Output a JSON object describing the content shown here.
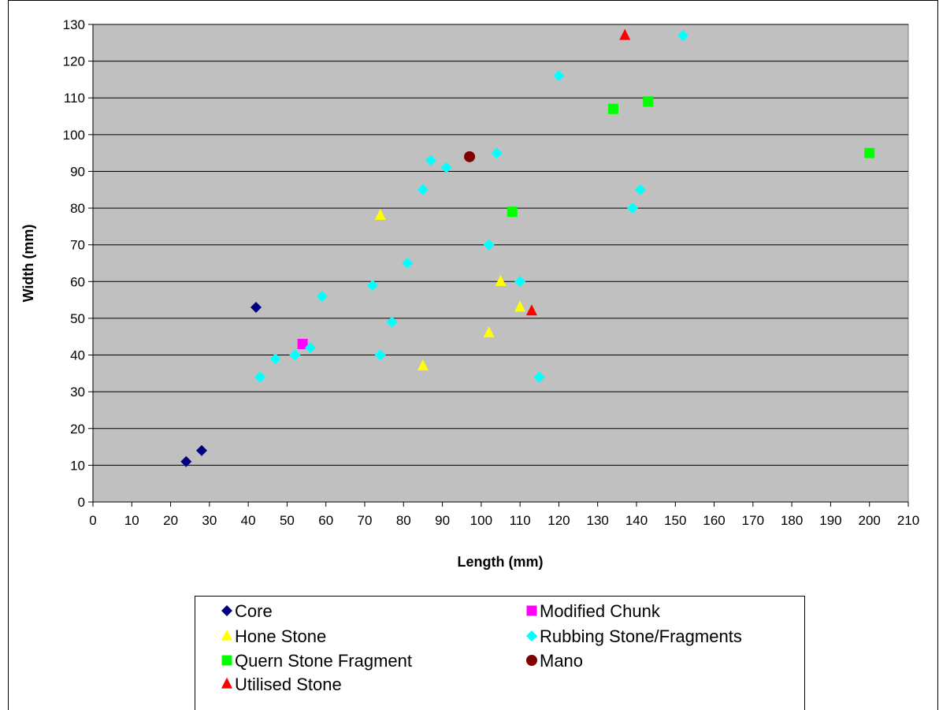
{
  "chart_data": {
    "type": "scatter",
    "xlabel": "Length (mm)",
    "ylabel": "Width (mm)",
    "xlim": [
      0,
      210
    ],
    "ylim": [
      0,
      130
    ],
    "x_ticks": [
      0,
      10,
      20,
      30,
      40,
      50,
      60,
      70,
      80,
      90,
      100,
      110,
      120,
      130,
      140,
      150,
      160,
      170,
      180,
      190,
      200,
      210
    ],
    "y_ticks": [
      0,
      10,
      20,
      30,
      40,
      50,
      60,
      70,
      80,
      90,
      100,
      110,
      120,
      130
    ],
    "grid": "horizontal",
    "plot_background": "#c0c0c0",
    "legend_position": "bottom",
    "series": [
      {
        "name": "Core",
        "marker": "diamond",
        "color": "#000080",
        "points": [
          [
            24,
            11
          ],
          [
            28,
            14
          ],
          [
            42,
            53
          ]
        ]
      },
      {
        "name": "Modified Chunk",
        "marker": "square",
        "color": "#ff00ff",
        "points": [
          [
            54,
            43
          ]
        ]
      },
      {
        "name": "Hone Stone",
        "marker": "triangle",
        "color": "#ffff00",
        "points": [
          [
            74,
            78
          ],
          [
            85,
            37
          ],
          [
            102,
            46
          ],
          [
            105,
            60
          ],
          [
            110,
            53
          ]
        ]
      },
      {
        "name": "Rubbing Stone/Fragments",
        "marker": "diamond",
        "color": "#00ffff",
        "points": [
          [
            43,
            34
          ],
          [
            47,
            39
          ],
          [
            52,
            40
          ],
          [
            56,
            42
          ],
          [
            59,
            56
          ],
          [
            72,
            59
          ],
          [
            74,
            40
          ],
          [
            77,
            49
          ],
          [
            81,
            65
          ],
          [
            85,
            85
          ],
          [
            87,
            93
          ],
          [
            91,
            91
          ],
          [
            102,
            70
          ],
          [
            104,
            95
          ],
          [
            110,
            60
          ],
          [
            115,
            34
          ],
          [
            120,
            116
          ],
          [
            139,
            80
          ],
          [
            141,
            85
          ],
          [
            152,
            127
          ]
        ]
      },
      {
        "name": "Quern Stone Fragment",
        "marker": "square",
        "color": "#00ff00",
        "points": [
          [
            108,
            79
          ],
          [
            134,
            107
          ],
          [
            143,
            109
          ],
          [
            200,
            95
          ]
        ]
      },
      {
        "name": "Mano",
        "marker": "circle",
        "color": "#800000",
        "points": [
          [
            97,
            94
          ]
        ]
      },
      {
        "name": "Utilised Stone",
        "marker": "triangle",
        "color": "#ff0000",
        "points": [
          [
            113,
            52
          ],
          [
            137,
            127
          ]
        ]
      }
    ]
  }
}
